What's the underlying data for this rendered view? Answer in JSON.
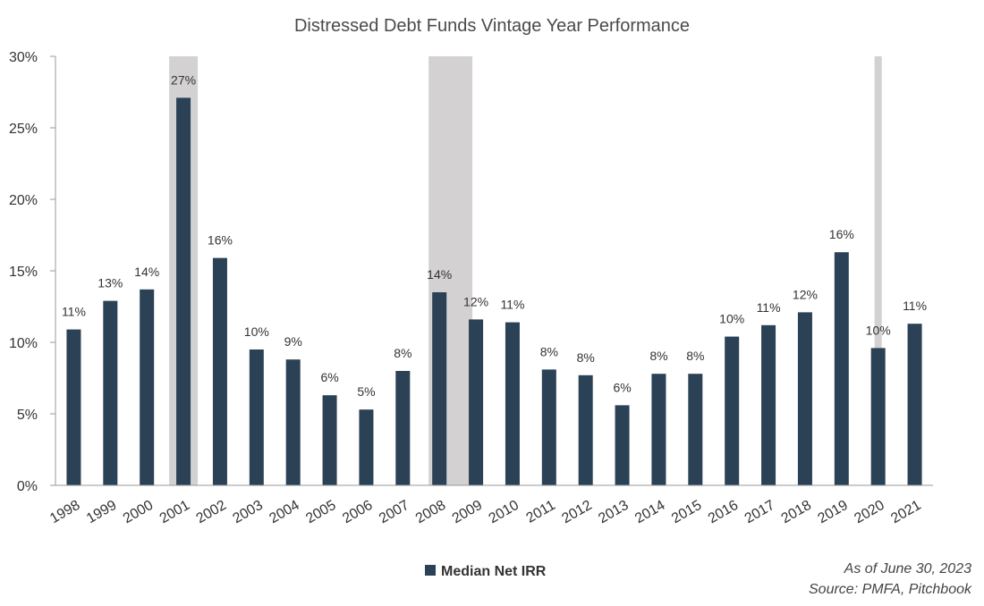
{
  "chart_data": {
    "type": "bar",
    "title": "Distressed Debt Funds Vintage Year Performance",
    "categories": [
      "1998",
      "1999",
      "2000",
      "2001",
      "2002",
      "2003",
      "2004",
      "2005",
      "2006",
      "2007",
      "2008",
      "2009",
      "2010",
      "2011",
      "2012",
      "2013",
      "2014",
      "2015",
      "2016",
      "2017",
      "2018",
      "2019",
      "2020",
      "2021"
    ],
    "series": [
      {
        "name": "Median Net IRR",
        "color": "#2b4155",
        "values": [
          10.9,
          12.9,
          13.7,
          27.1,
          15.9,
          9.5,
          8.8,
          6.3,
          5.3,
          8.0,
          13.5,
          11.6,
          11.4,
          8.1,
          7.7,
          5.6,
          7.8,
          7.8,
          10.4,
          11.2,
          12.1,
          16.3,
          9.6,
          11.3
        ]
      }
    ],
    "data_labels": [
      "11%",
      "13%",
      "14%",
      "27%",
      "16%",
      "10%",
      "9%",
      "6%",
      "5%",
      "8%",
      "14%",
      "12%",
      "11%",
      "8%",
      "8%",
      "6%",
      "8%",
      "8%",
      "10%",
      "11%",
      "12%",
      "16%",
      "10%",
      "11%"
    ],
    "ylim": [
      0,
      30
    ],
    "yticks": [
      {
        "value": 0,
        "label": "0%"
      },
      {
        "value": 5,
        "label": "5%"
      },
      {
        "value": 10,
        "label": "10%"
      },
      {
        "value": 15,
        "label": "15%"
      },
      {
        "value": 20,
        "label": "20%"
      },
      {
        "value": 25,
        "label": "25%"
      },
      {
        "value": 30,
        "label": "30%"
      }
    ],
    "shaded_periods": [
      {
        "from": "2001",
        "to": "2001",
        "color": "#d3d1d2"
      },
      {
        "from": "2008",
        "to": "2009",
        "color": "#d3d1d2"
      },
      {
        "from": "2020",
        "to": "2020",
        "color": "#d3d1d2"
      }
    ],
    "grid": false,
    "legend_position": "bottom-center",
    "notes": [
      "As of June 30, 2023",
      "Source: PMFA, Pitchbook"
    ]
  }
}
